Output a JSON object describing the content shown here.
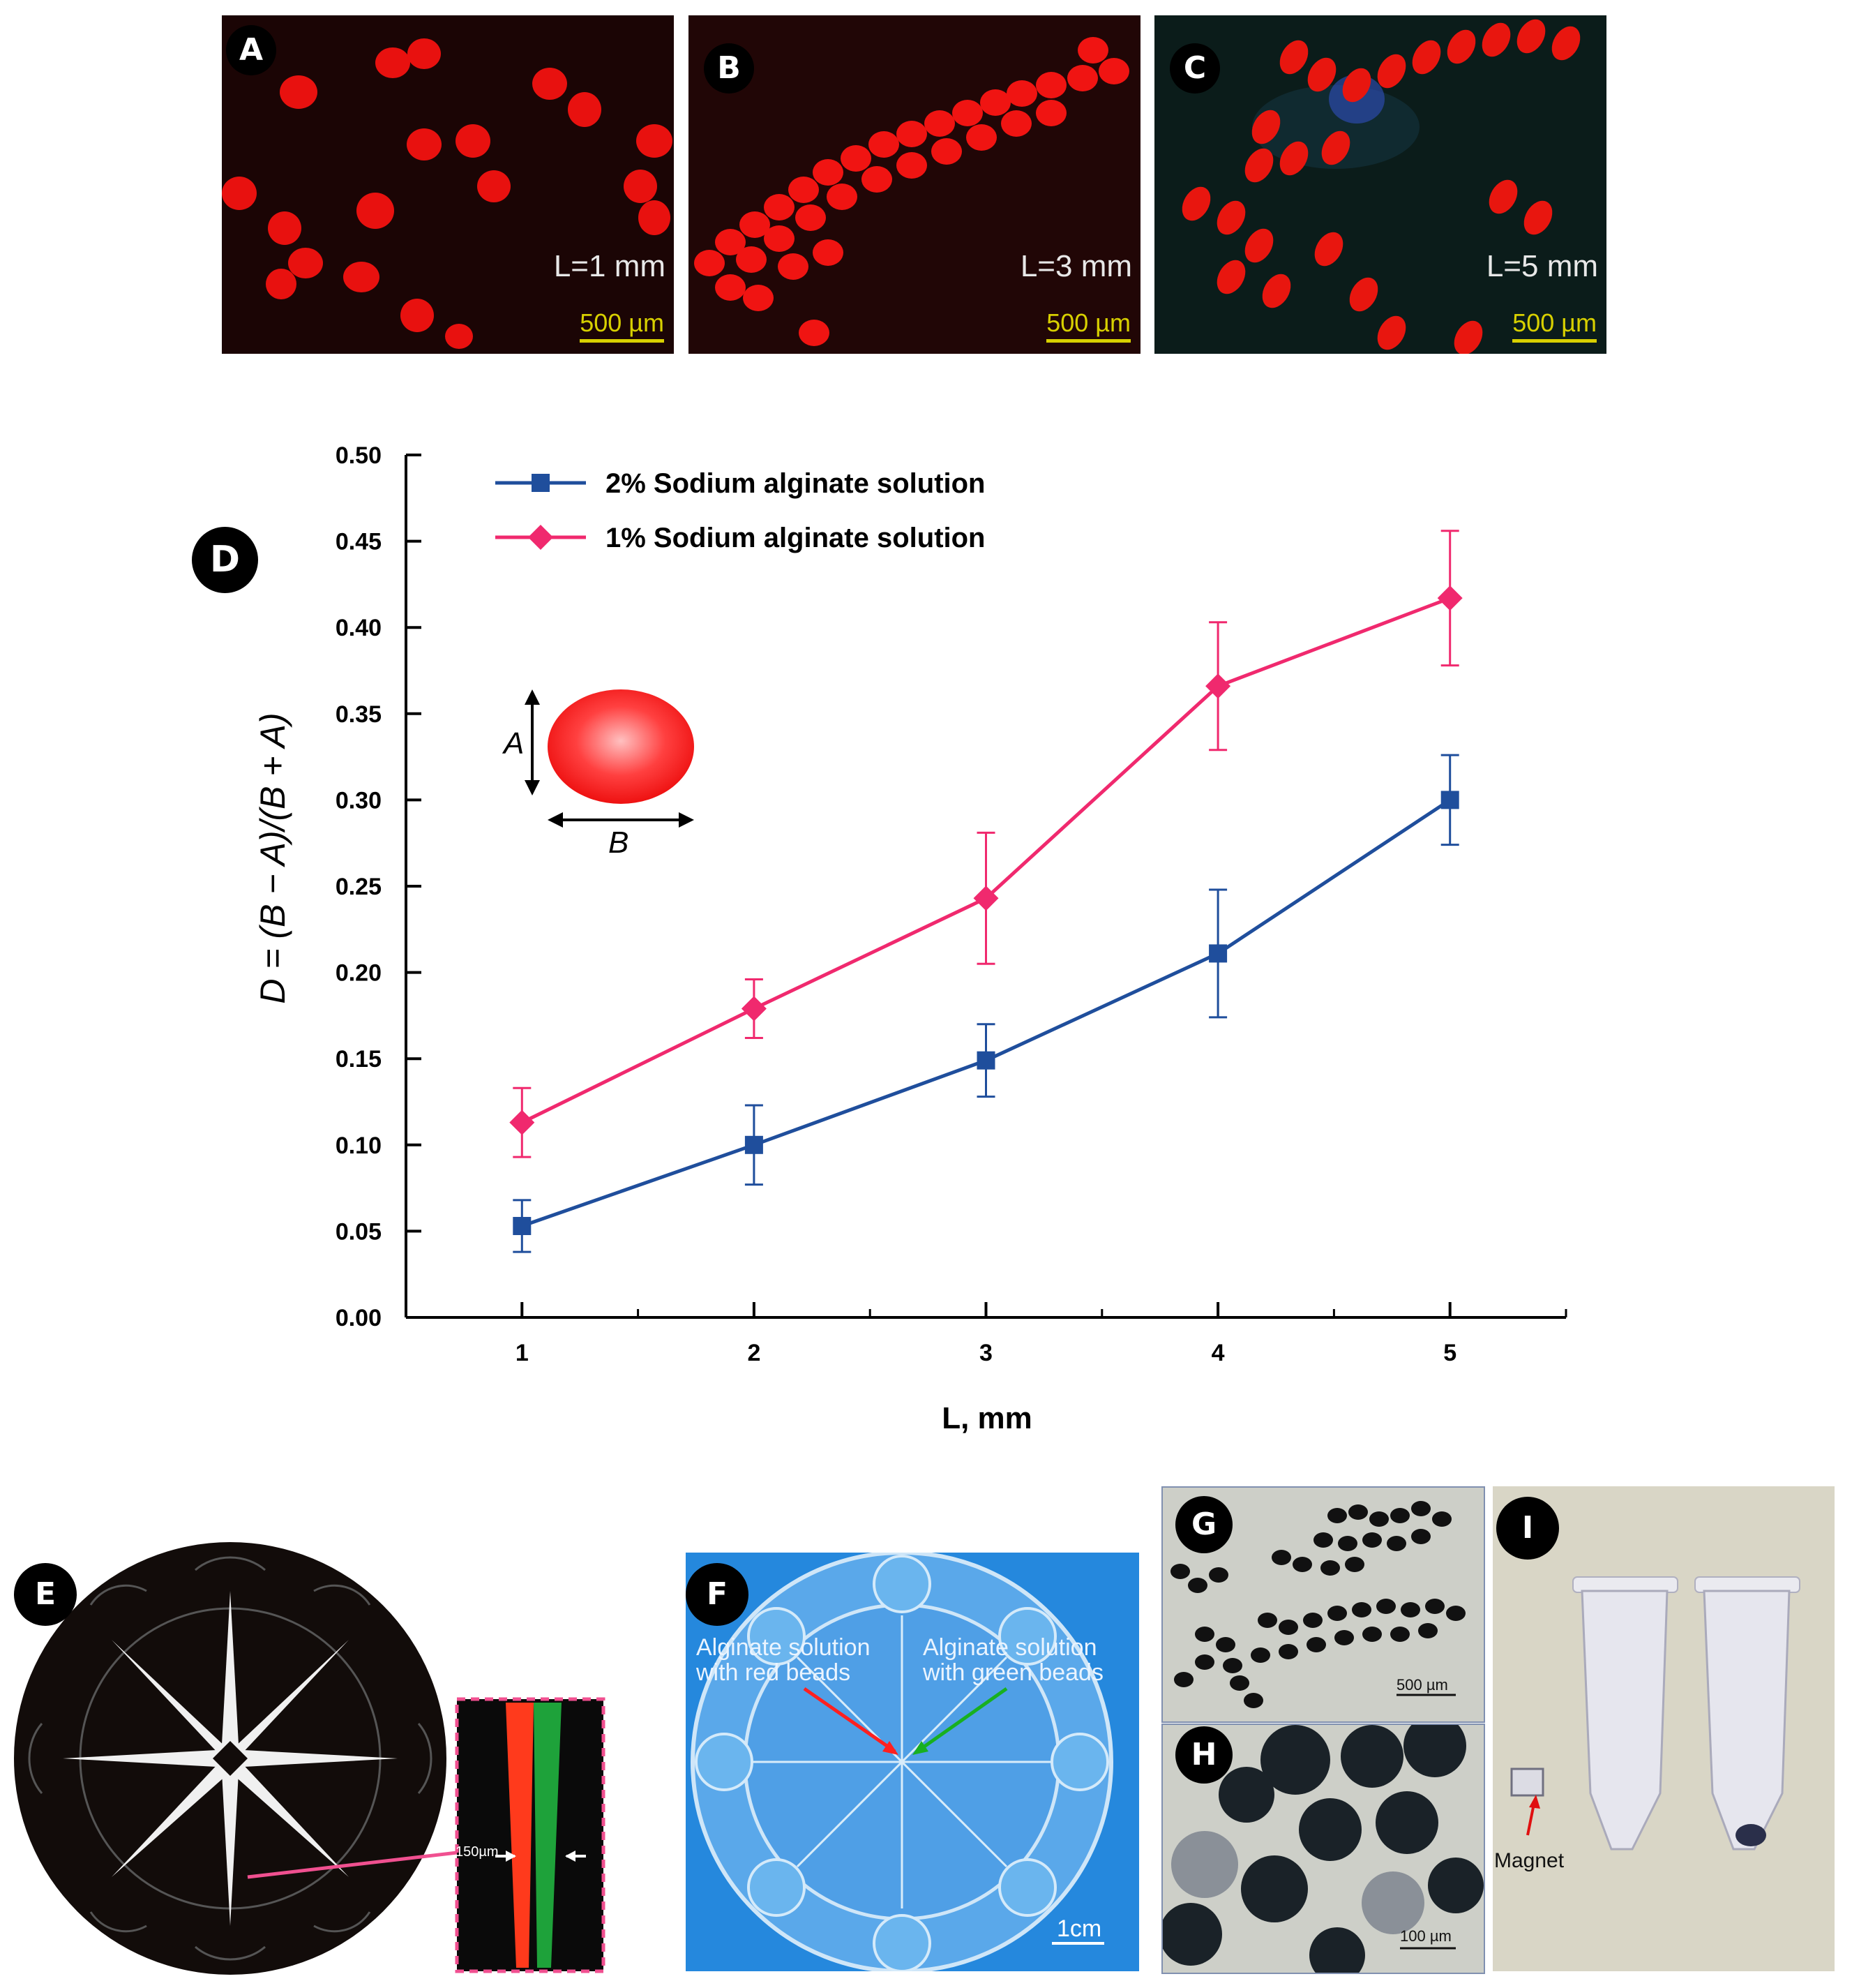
{
  "panels": {
    "a": {
      "badge": "A",
      "length_label": "L=1 mm",
      "scale": "500 µm"
    },
    "b": {
      "badge": "B",
      "length_label": "L=3 mm",
      "scale": "500 µm"
    },
    "c": {
      "badge": "C",
      "length_label": "L=5 mm",
      "scale": "500 µm"
    },
    "d": {
      "badge": "D"
    },
    "e": {
      "badge": "E",
      "inset_label": "150µm"
    },
    "f": {
      "badge": "F",
      "label_red": "Alginate solution with red beads",
      "label_green": "Alginate solution with green beads",
      "scale": "1cm"
    },
    "g": {
      "badge": "G",
      "scale": "500 µm"
    },
    "h": {
      "badge": "H",
      "scale": "100 µm"
    },
    "i": {
      "badge": "I",
      "magnet_label": "Magnet"
    }
  },
  "chart_data": {
    "type": "line",
    "xlabel": "L, mm",
    "ylabel": "D = (B − A)/(B + A)",
    "x": [
      1,
      2,
      3,
      4,
      5
    ],
    "xlim": [
      0.5,
      5.5
    ],
    "ylim": [
      0,
      0.5
    ],
    "yticks": [
      "0.00",
      "0.05",
      "0.10",
      "0.15",
      "0.20",
      "0.25",
      "0.30",
      "0.35",
      "0.40",
      "0.45",
      "0.50"
    ],
    "xticks": [
      "1",
      "2",
      "3",
      "4",
      "5"
    ],
    "legend_position": "top-left",
    "series": [
      {
        "name": "2% Sodium alginate solution",
        "color": "#1f4e9c",
        "marker": "square",
        "values": [
          0.053,
          0.1,
          0.149,
          0.211,
          0.3
        ],
        "err": [
          0.015,
          0.023,
          0.021,
          0.037,
          0.026
        ]
      },
      {
        "name": "1% Sodium alginate solution",
        "color": "#f0296e",
        "marker": "diamond",
        "values": [
          0.113,
          0.179,
          0.243,
          0.366,
          0.417
        ],
        "err": [
          0.02,
          0.017,
          0.038,
          0.037,
          0.039
        ]
      }
    ],
    "inset": {
      "label_a": "A",
      "label_b": "B"
    }
  }
}
